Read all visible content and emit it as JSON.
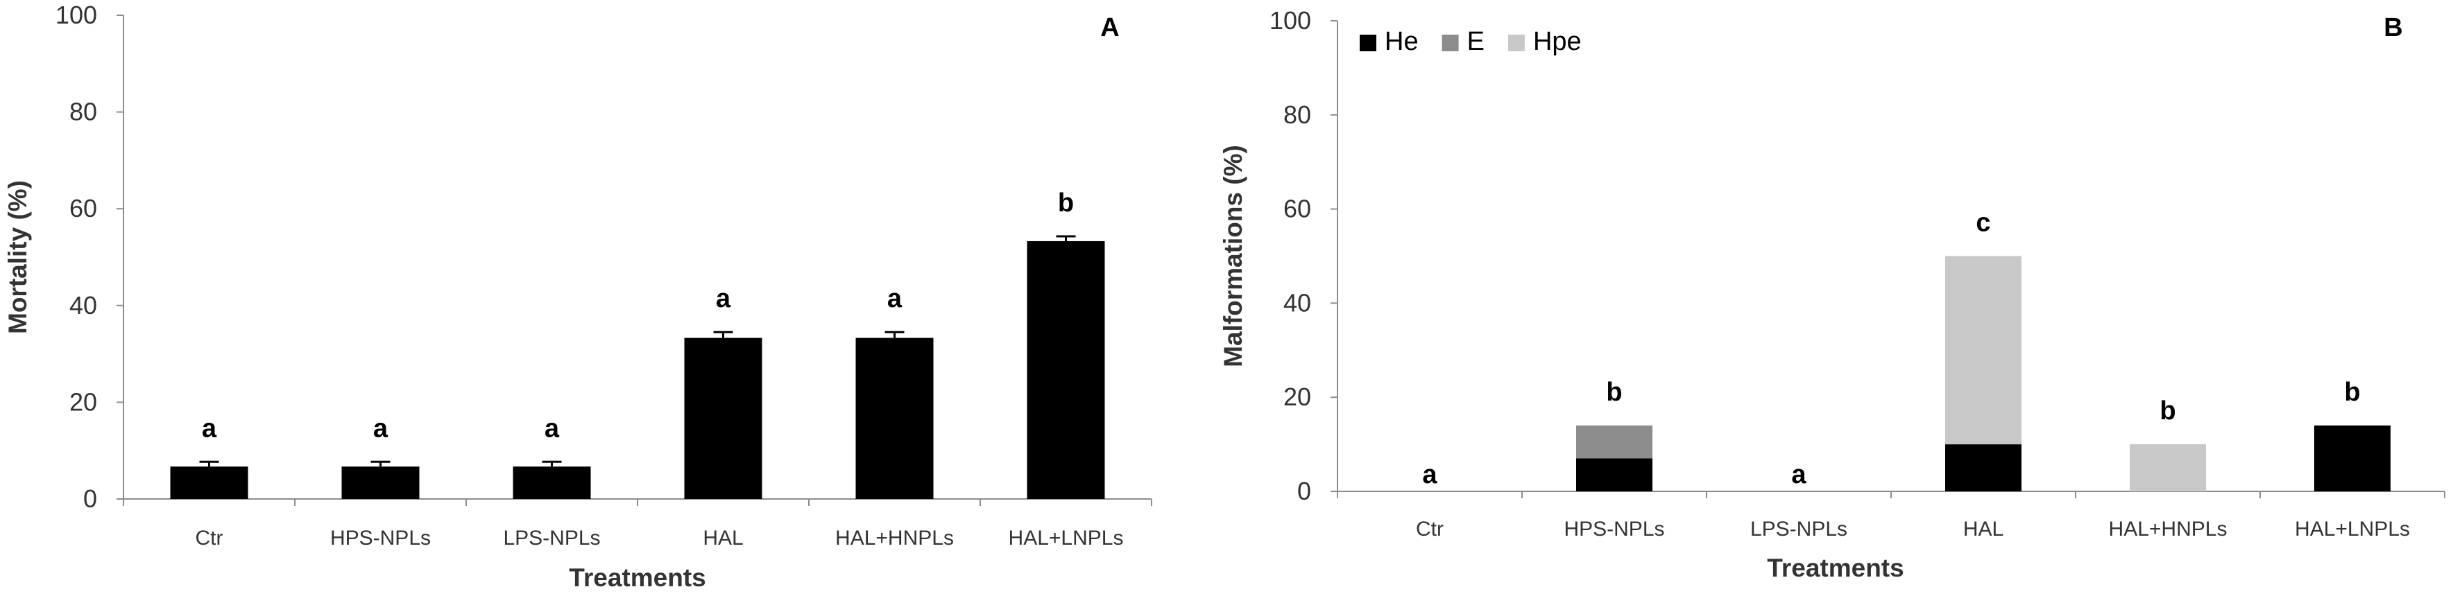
{
  "chart_data": [
    {
      "type": "bar",
      "panel_label": "A",
      "xlabel": "Treatments",
      "ylabel": "Mortality (%)",
      "ylim": [
        0,
        100
      ],
      "yticks": [
        "0",
        "20",
        "40",
        "60",
        "80",
        "100"
      ],
      "categories": [
        "Ctr",
        "HPS-NPLs",
        "LPS-NPLs",
        "HAL",
        "HAL+HNPLs",
        "HAL+LNPLs"
      ],
      "values": [
        6.7,
        6.7,
        6.7,
        33.3,
        33.3,
        53.3
      ],
      "errors": [
        1.0,
        1.0,
        1.0,
        1.2,
        1.2,
        1.0
      ],
      "significance": [
        "a",
        "a",
        "a",
        "a",
        "a",
        "b"
      ],
      "bar_color": "#000000",
      "grid": false
    },
    {
      "type": "bar",
      "stacked": true,
      "panel_label": "B",
      "xlabel": "Treatments",
      "ylabel": "Malformations (%)",
      "ylim": [
        0,
        100
      ],
      "yticks": [
        "0",
        "20",
        "40",
        "60",
        "80",
        "100"
      ],
      "categories": [
        "Ctr",
        "HPS-NPLs",
        "LPS-NPLs",
        "HAL",
        "HAL+HNPLs",
        "HAL+LNPLs"
      ],
      "series": [
        {
          "name": "He",
          "color": "#000000",
          "values": [
            0,
            7,
            0,
            10,
            0,
            14
          ]
        },
        {
          "name": "E",
          "color": "#8c8c8c",
          "values": [
            0,
            7,
            0,
            0,
            0,
            0
          ]
        },
        {
          "name": "Hpe",
          "color": "#c8c8c8",
          "values": [
            0,
            0,
            0,
            40,
            10,
            0
          ]
        }
      ],
      "significance": [
        "a",
        "b",
        "a",
        "c",
        "b",
        "b"
      ],
      "legend_position": "top-left",
      "grid": false
    }
  ]
}
